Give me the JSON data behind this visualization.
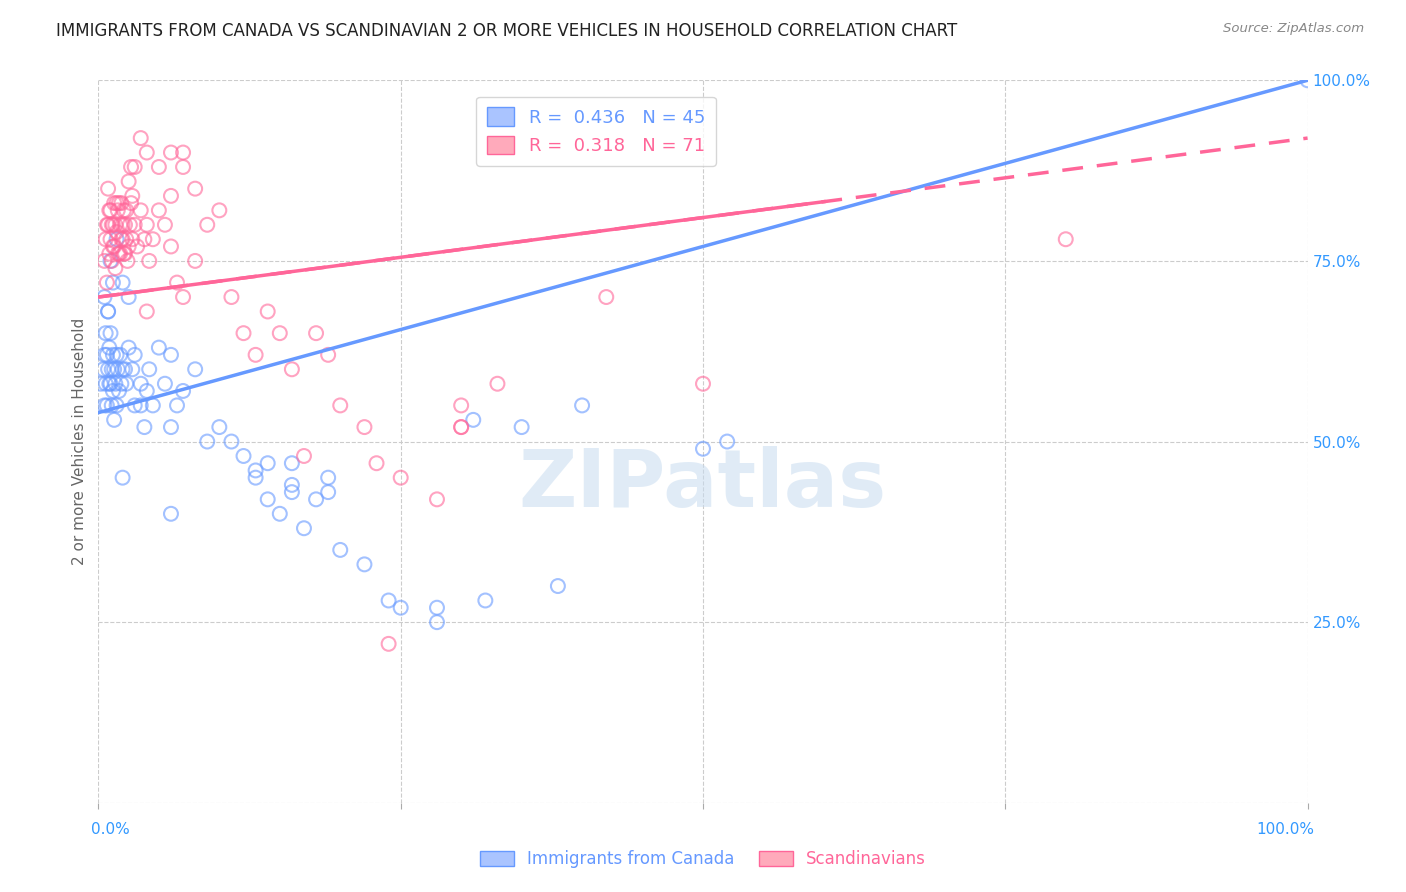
{
  "title": "IMMIGRANTS FROM CANADA VS SCANDINAVIAN 2 OR MORE VEHICLES IN HOUSEHOLD CORRELATION CHART",
  "source": "Source: ZipAtlas.com",
  "ylabel": "2 or more Vehicles in Household",
  "ytick_labels": [
    "",
    "25.0%",
    "50.0%",
    "75.0%",
    "100.0%"
  ],
  "ytick_values": [
    0.0,
    0.25,
    0.5,
    0.75,
    1.0
  ],
  "xlim": [
    0.0,
    1.0
  ],
  "ylim": [
    0.0,
    1.0
  ],
  "canada_color": "#6699ff",
  "scand_color": "#ff6699",
  "watermark": "ZIPatlas",
  "background_color": "#ffffff",
  "grid_color": "#cccccc",
  "canada_line": [
    0.0,
    0.54,
    1.0,
    1.0
  ],
  "scand_line": [
    0.0,
    0.7,
    1.0,
    0.92
  ],
  "canada_points": [
    [
      0.002,
      0.58
    ],
    [
      0.004,
      0.6
    ],
    [
      0.005,
      0.62
    ],
    [
      0.005,
      0.55
    ],
    [
      0.006,
      0.65
    ],
    [
      0.006,
      0.58
    ],
    [
      0.007,
      0.62
    ],
    [
      0.007,
      0.55
    ],
    [
      0.008,
      0.68
    ],
    [
      0.008,
      0.6
    ],
    [
      0.009,
      0.63
    ],
    [
      0.009,
      0.58
    ],
    [
      0.01,
      0.65
    ],
    [
      0.01,
      0.58
    ],
    [
      0.011,
      0.6
    ],
    [
      0.011,
      0.55
    ],
    [
      0.012,
      0.62
    ],
    [
      0.012,
      0.57
    ],
    [
      0.013,
      0.6
    ],
    [
      0.013,
      0.53
    ],
    [
      0.014,
      0.58
    ],
    [
      0.015,
      0.62
    ],
    [
      0.015,
      0.55
    ],
    [
      0.016,
      0.6
    ],
    [
      0.017,
      0.57
    ],
    [
      0.018,
      0.62
    ],
    [
      0.019,
      0.58
    ],
    [
      0.02,
      0.6
    ],
    [
      0.02,
      0.72
    ],
    [
      0.022,
      0.6
    ],
    [
      0.023,
      0.58
    ],
    [
      0.025,
      0.7
    ],
    [
      0.025,
      0.63
    ],
    [
      0.028,
      0.6
    ],
    [
      0.03,
      0.62
    ],
    [
      0.03,
      0.55
    ],
    [
      0.035,
      0.55
    ],
    [
      0.035,
      0.58
    ],
    [
      0.038,
      0.52
    ],
    [
      0.04,
      0.57
    ],
    [
      0.042,
      0.6
    ],
    [
      0.045,
      0.55
    ],
    [
      0.05,
      0.63
    ],
    [
      0.055,
      0.58
    ],
    [
      0.06,
      0.62
    ],
    [
      0.06,
      0.52
    ],
    [
      0.06,
      0.4
    ],
    [
      0.065,
      0.55
    ],
    [
      0.07,
      0.57
    ],
    [
      0.08,
      0.6
    ],
    [
      0.09,
      0.5
    ],
    [
      0.1,
      0.52
    ],
    [
      0.11,
      0.5
    ],
    [
      0.12,
      0.48
    ],
    [
      0.13,
      0.45
    ],
    [
      0.13,
      0.46
    ],
    [
      0.14,
      0.42
    ],
    [
      0.14,
      0.47
    ],
    [
      0.15,
      0.4
    ],
    [
      0.16,
      0.43
    ],
    [
      0.16,
      0.47
    ],
    [
      0.17,
      0.38
    ],
    [
      0.18,
      0.42
    ],
    [
      0.19,
      0.45
    ],
    [
      0.2,
      0.35
    ],
    [
      0.22,
      0.33
    ],
    [
      0.25,
      0.27
    ],
    [
      0.28,
      0.25
    ],
    [
      0.31,
      0.53
    ],
    [
      0.32,
      0.28
    ],
    [
      0.35,
      0.52
    ],
    [
      0.38,
      0.3
    ],
    [
      0.4,
      0.55
    ],
    [
      0.5,
      0.49
    ],
    [
      0.52,
      0.5
    ],
    [
      1.0,
      1.0
    ],
    [
      0.01,
      0.75
    ],
    [
      0.015,
      0.78
    ],
    [
      0.008,
      0.68
    ],
    [
      0.005,
      0.7
    ],
    [
      0.02,
      0.45
    ],
    [
      0.012,
      0.72
    ],
    [
      0.28,
      0.27
    ],
    [
      0.24,
      0.28
    ],
    [
      0.19,
      0.43
    ],
    [
      0.16,
      0.44
    ]
  ],
  "scand_points": [
    [
      0.005,
      0.75
    ],
    [
      0.006,
      0.78
    ],
    [
      0.007,
      0.72
    ],
    [
      0.007,
      0.8
    ],
    [
      0.008,
      0.8
    ],
    [
      0.008,
      0.85
    ],
    [
      0.009,
      0.76
    ],
    [
      0.009,
      0.82
    ],
    [
      0.01,
      0.78
    ],
    [
      0.01,
      0.82
    ],
    [
      0.011,
      0.8
    ],
    [
      0.011,
      0.75
    ],
    [
      0.012,
      0.8
    ],
    [
      0.012,
      0.77
    ],
    [
      0.013,
      0.77
    ],
    [
      0.013,
      0.83
    ],
    [
      0.014,
      0.74
    ],
    [
      0.014,
      0.8
    ],
    [
      0.015,
      0.79
    ],
    [
      0.015,
      0.83
    ],
    [
      0.016,
      0.82
    ],
    [
      0.016,
      0.76
    ],
    [
      0.017,
      0.76
    ],
    [
      0.017,
      0.83
    ],
    [
      0.018,
      0.8
    ],
    [
      0.018,
      0.76
    ],
    [
      0.019,
      0.83
    ],
    [
      0.019,
      0.78
    ],
    [
      0.02,
      0.78
    ],
    [
      0.02,
      0.8
    ],
    [
      0.021,
      0.76
    ],
    [
      0.021,
      0.82
    ],
    [
      0.022,
      0.8
    ],
    [
      0.022,
      0.76
    ],
    [
      0.023,
      0.82
    ],
    [
      0.023,
      0.78
    ],
    [
      0.024,
      0.75
    ],
    [
      0.025,
      0.77
    ],
    [
      0.025,
      0.86
    ],
    [
      0.026,
      0.8
    ],
    [
      0.027,
      0.83
    ],
    [
      0.027,
      0.88
    ],
    [
      0.028,
      0.78
    ],
    [
      0.028,
      0.84
    ],
    [
      0.03,
      0.8
    ],
    [
      0.03,
      0.88
    ],
    [
      0.032,
      0.77
    ],
    [
      0.035,
      0.82
    ],
    [
      0.035,
      0.92
    ],
    [
      0.038,
      0.78
    ],
    [
      0.04,
      0.8
    ],
    [
      0.04,
      0.9
    ],
    [
      0.04,
      0.68
    ],
    [
      0.042,
      0.75
    ],
    [
      0.045,
      0.78
    ],
    [
      0.05,
      0.82
    ],
    [
      0.05,
      0.88
    ],
    [
      0.055,
      0.8
    ],
    [
      0.06,
      0.77
    ],
    [
      0.06,
      0.84
    ],
    [
      0.06,
      0.9
    ],
    [
      0.065,
      0.72
    ],
    [
      0.07,
      0.7
    ],
    [
      0.07,
      0.9
    ],
    [
      0.07,
      0.88
    ],
    [
      0.08,
      0.75
    ],
    [
      0.08,
      0.85
    ],
    [
      0.09,
      0.8
    ],
    [
      0.1,
      0.82
    ],
    [
      0.11,
      0.7
    ],
    [
      0.12,
      0.65
    ],
    [
      0.13,
      0.62
    ],
    [
      0.14,
      0.68
    ],
    [
      0.15,
      0.65
    ],
    [
      0.16,
      0.6
    ],
    [
      0.17,
      0.48
    ],
    [
      0.18,
      0.65
    ],
    [
      0.19,
      0.62
    ],
    [
      0.2,
      0.55
    ],
    [
      0.22,
      0.52
    ],
    [
      0.23,
      0.47
    ],
    [
      0.24,
      0.22
    ],
    [
      0.25,
      0.45
    ],
    [
      0.28,
      0.42
    ],
    [
      0.3,
      0.52
    ],
    [
      0.3,
      0.55
    ],
    [
      0.33,
      0.58
    ],
    [
      0.42,
      0.7
    ],
    [
      0.5,
      0.58
    ],
    [
      0.8,
      0.78
    ],
    [
      0.3,
      0.52
    ]
  ],
  "title_fontsize": 12,
  "tick_label_color": "#3399ff",
  "ylabel_color": "#666666"
}
